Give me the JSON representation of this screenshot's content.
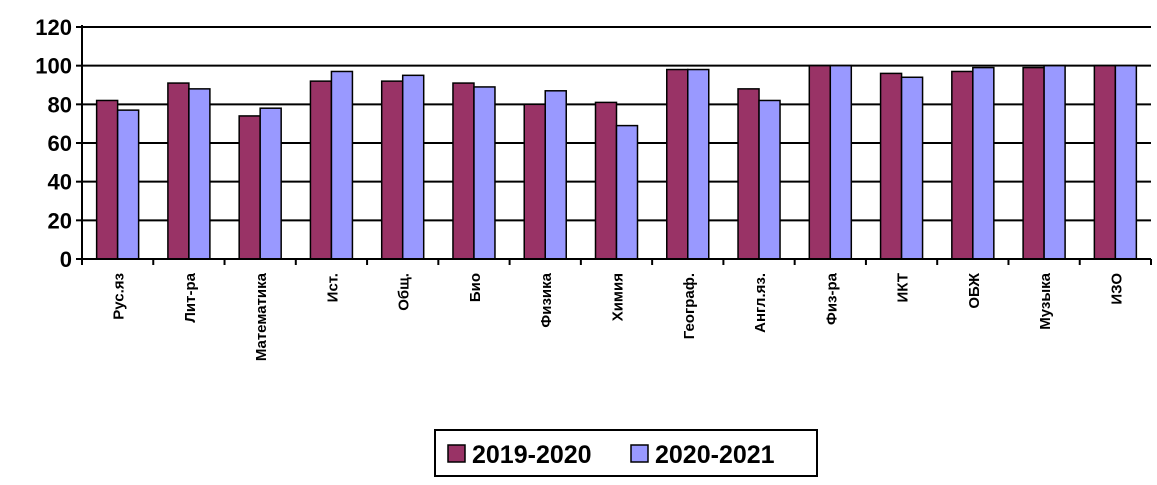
{
  "chart_data": {
    "type": "bar",
    "categories": [
      "Рус.яз",
      "Лит-ра",
      "Математика",
      "Ист.",
      "Общ.",
      "Био",
      "Физика",
      "Химия",
      "Географ.",
      "Англ.яз.",
      "Физ-ра",
      "ИКТ",
      "ОБЖ",
      "Музыка",
      "ИЗО"
    ],
    "series": [
      {
        "name": "2019-2020",
        "color": "#993366",
        "values": [
          82,
          91,
          74,
          92,
          92,
          91,
          80,
          81,
          98,
          88,
          100,
          96,
          97,
          99,
          100
        ]
      },
      {
        "name": "2020-2021",
        "color": "#9999ff",
        "values": [
          77,
          88,
          78,
          97,
          95,
          89,
          87,
          69,
          98,
          82,
          100,
          94,
          99,
          100,
          100
        ]
      }
    ],
    "y_ticks": [
      "0",
      "20",
      "40",
      "60",
      "80",
      "100",
      "120"
    ],
    "ylim": [
      0,
      120
    ],
    "grid": true,
    "legend_position": "bottom-center"
  }
}
